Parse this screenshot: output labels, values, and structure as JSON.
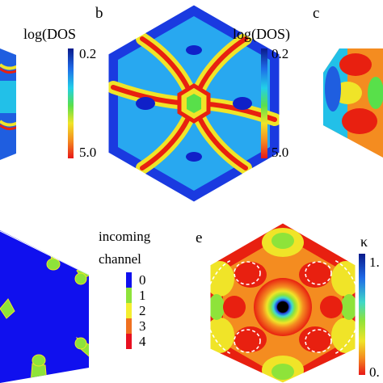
{
  "panels": {
    "a": {
      "colorbar_title": "log(DOS",
      "tick_top": "0.2",
      "tick_bottom": "5.0"
    },
    "b": {
      "letter": "b",
      "colorbar_title": "log(DOS)",
      "tick_top": "0.2",
      "tick_bottom": "5.0"
    },
    "c": {
      "letter": "c"
    },
    "d": {
      "legend_line1": "incoming",
      "legend_line2": "channel",
      "levels": [
        "0",
        "1",
        "2",
        "3",
        "4"
      ],
      "level_colors": [
        "#1010ee",
        "#8ee33a",
        "#f4ee30",
        "#f07020",
        "#e81020"
      ]
    },
    "e": {
      "letter": "e",
      "colorbar_title": "κ",
      "tick_top": "1.",
      "tick_bottom": "0."
    }
  },
  "colors": {
    "deep_blue": "#1018d8",
    "red": "#e82010",
    "green": "#78d828",
    "yellow": "#f0e428",
    "orange": "#f48c20"
  }
}
